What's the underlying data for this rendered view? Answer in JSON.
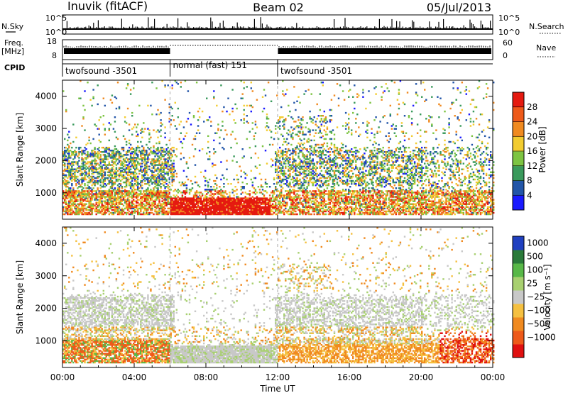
{
  "header": {
    "station": "Inuvik (fitACF)",
    "beam": "Beam 02",
    "date": "05/Jul/2013"
  },
  "strip_labels": {
    "nsky": "N.Sky",
    "freq": "Freq.",
    "freq_unit": "[MHz]",
    "cpid": "CPID",
    "nsearch": "N.Search",
    "nave": "Nave",
    "nsky_top": "10^5",
    "nsky_bot": "10^0",
    "nsearch_top": "10^5",
    "nsearch_bot": "10^0",
    "freq_top": "18",
    "freq_bot": "8",
    "nave_top": "60",
    "nave_bot": "0"
  },
  "chart_data": [
    {
      "type": "heatmap",
      "name": "power",
      "ylabel": "Slant Range [km]",
      "xlabel": "",
      "ylim": [
        180,
        4500
      ],
      "yticks": [
        "1000",
        "2000",
        "3000",
        "4000"
      ],
      "colorbar": {
        "label": "Power [dB]",
        "ticks": [
          "4",
          "8",
          "12",
          "16",
          "20",
          "24",
          "28"
        ],
        "colors": [
          "#1a1aff",
          "#2255a8",
          "#3a9a5c",
          "#7dc442",
          "#f2cc30",
          "#f08a20",
          "#ee5a1a",
          "#e51a10"
        ]
      }
    },
    {
      "type": "heatmap",
      "name": "velocity",
      "ylabel": "Slant Range [km]",
      "xlabel": "Time UT",
      "xlim": [
        "00:00",
        "24:00"
      ],
      "xticks": [
        "00:00",
        "04:00",
        "08:00",
        "12:00",
        "16:00",
        "20:00",
        "00:00"
      ],
      "ylim": [
        180,
        4500
      ],
      "yticks": [
        "1000",
        "2000",
        "3000",
        "4000"
      ],
      "colorbar": {
        "label": "Velocity [m s⁻¹]",
        "ticks": [
          "1000",
          "500",
          "100",
          "25",
          "−25",
          "−100",
          "−500",
          "−1000"
        ],
        "colors": [
          "#2040c0",
          "#2a7a3a",
          "#58b848",
          "#a8d070",
          "#c8c8c8",
          "#f5c040",
          "#f08a20",
          "#ee5a1a",
          "#e01010"
        ]
      }
    }
  ],
  "cpid_segments": [
    {
      "label": "twofsound -3501",
      "start_hr": 0,
      "end_hr": 6
    },
    {
      "label": "normal (fast) 151",
      "start_hr": 6,
      "end_hr": 12
    },
    {
      "label": "twofsound -3501",
      "start_hr": 12,
      "end_hr": 24
    }
  ]
}
